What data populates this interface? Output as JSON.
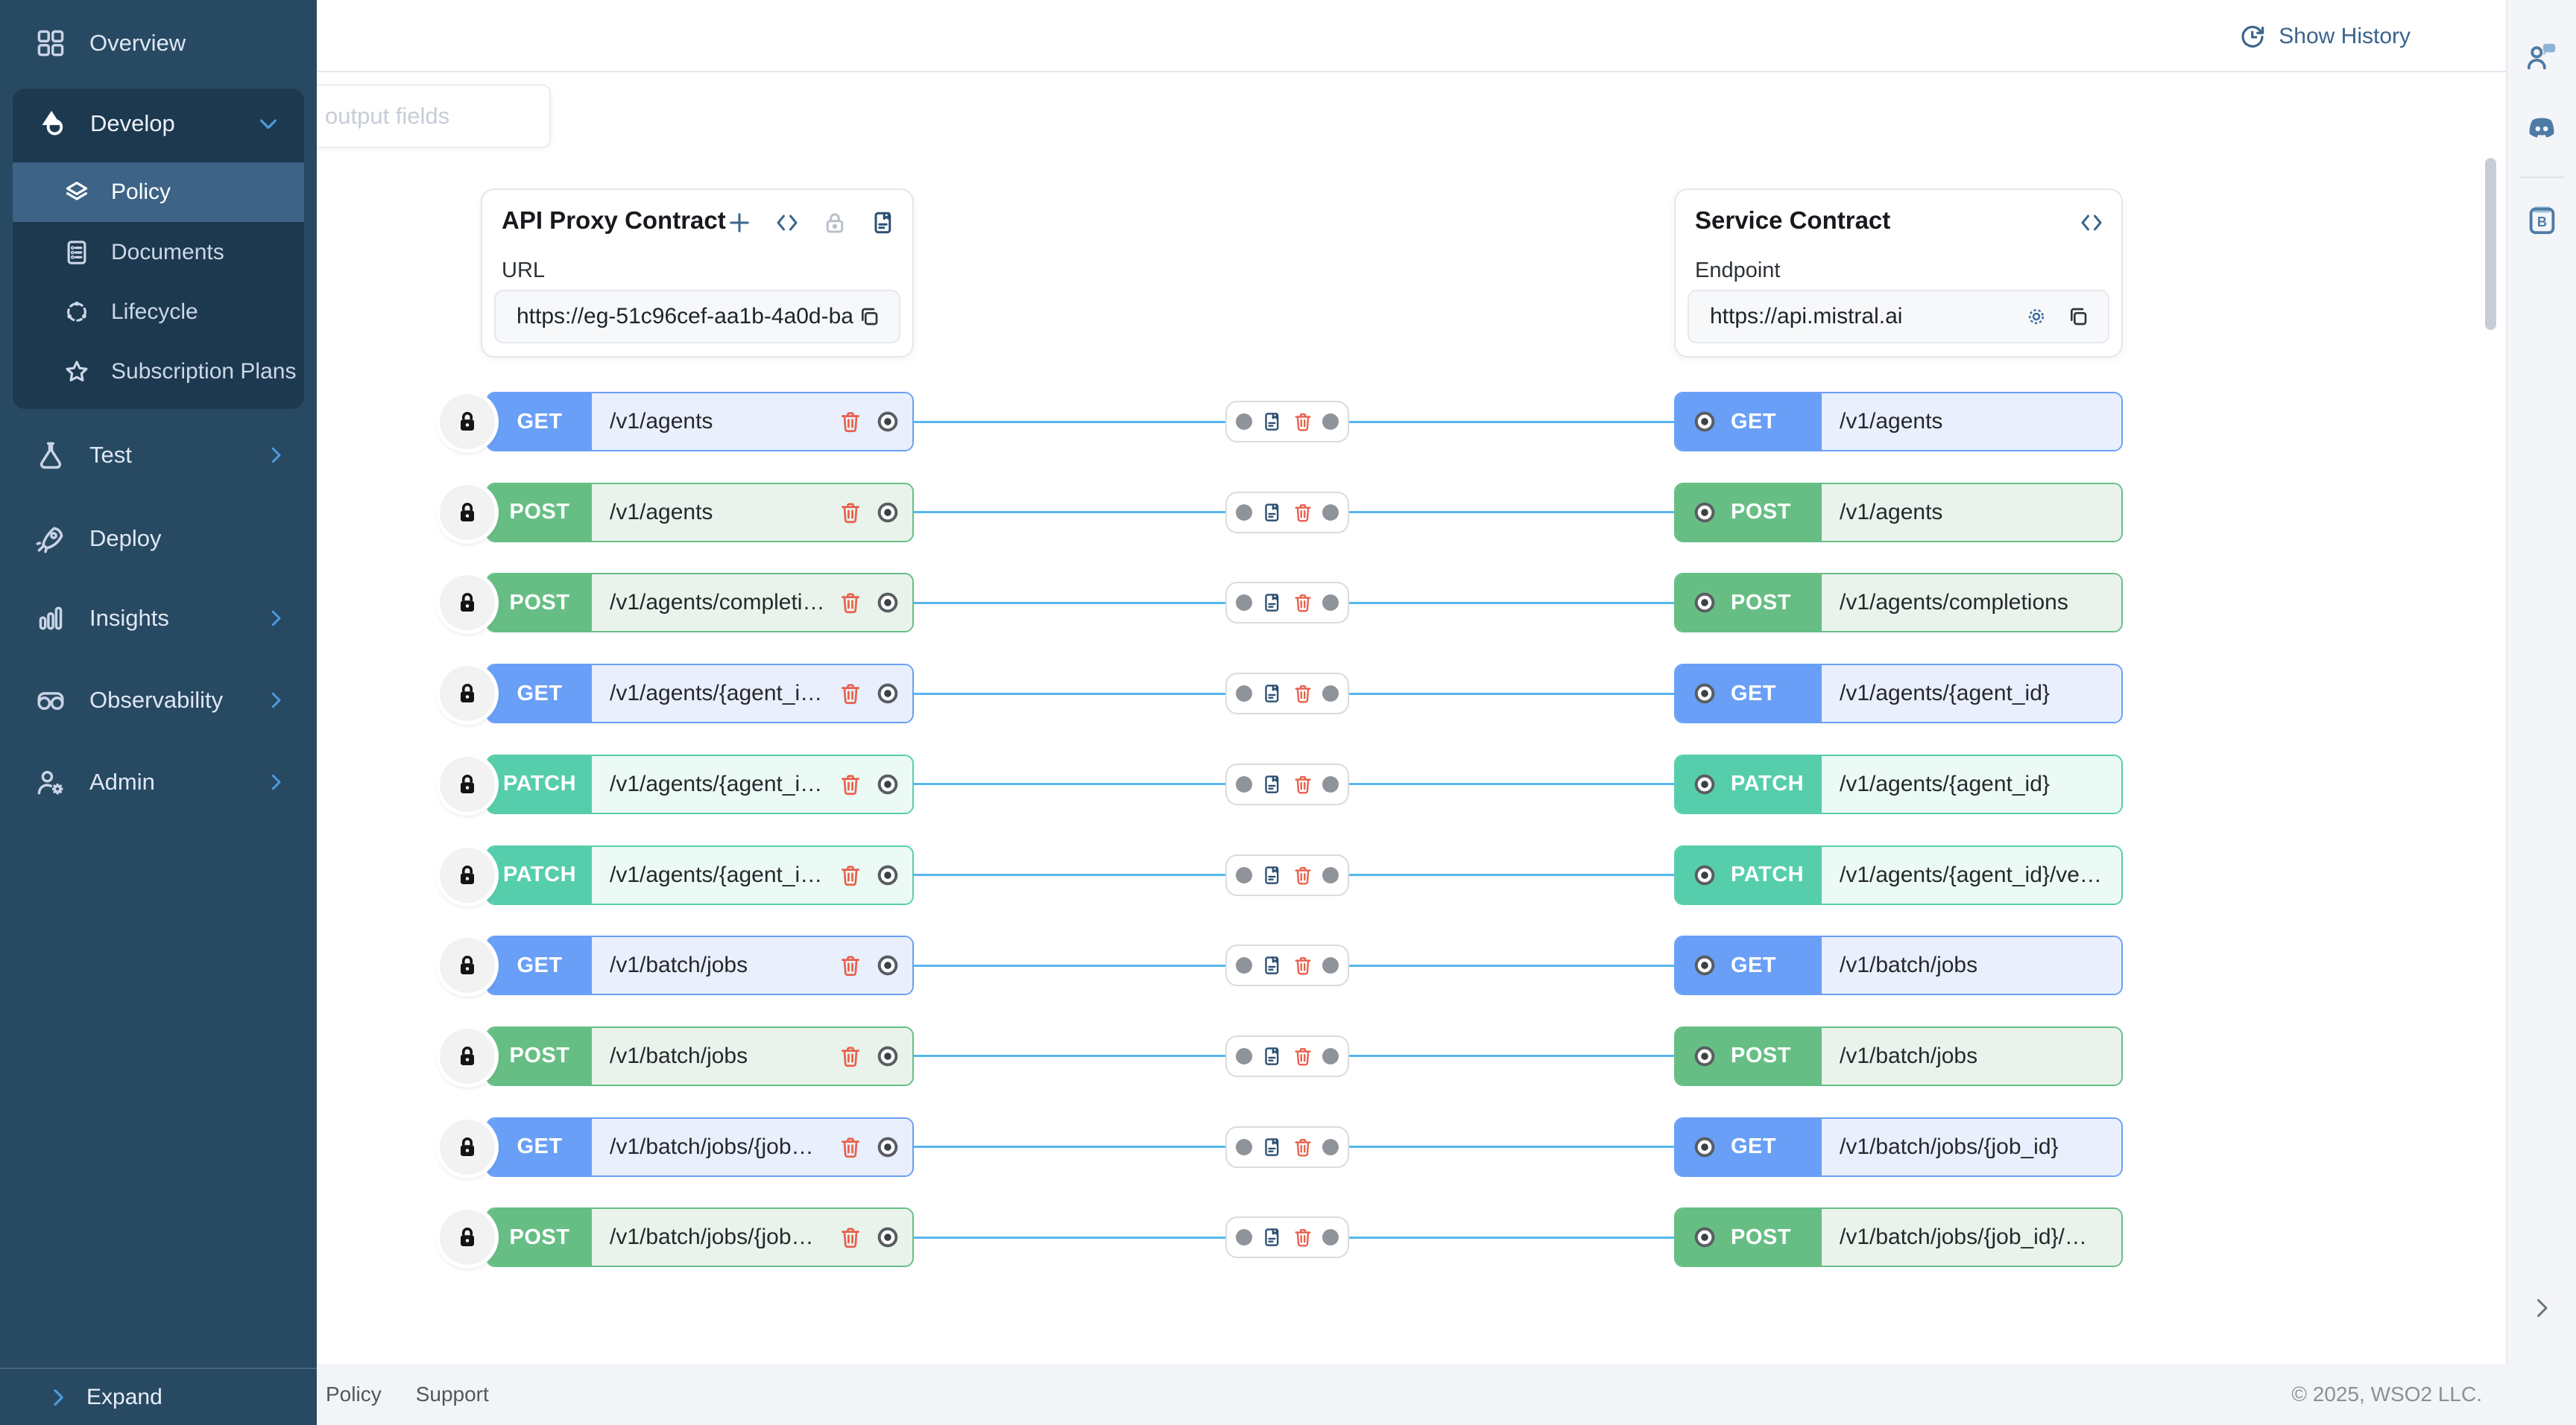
{
  "sidebar": {
    "items": [
      {
        "label": "Overview",
        "icon": "grid-icon",
        "chevron": null
      },
      {
        "label": "Test",
        "icon": "flask-icon",
        "chevron": "right"
      },
      {
        "label": "Deploy",
        "icon": "rocket-icon",
        "chevron": null
      },
      {
        "label": "Insights",
        "icon": "bars-icon",
        "chevron": "right"
      },
      {
        "label": "Observability",
        "icon": "goggles-icon",
        "chevron": "right"
      },
      {
        "label": "Admin",
        "icon": "person-gear-icon",
        "chevron": "right"
      }
    ],
    "develop_group": {
      "label": "Develop",
      "icon": "develop-icon",
      "chevron": "down",
      "children": [
        {
          "label": "Policy",
          "icon": "layers-icon",
          "selected": true
        },
        {
          "label": "Documents",
          "icon": "document-icon",
          "selected": false
        },
        {
          "label": "Lifecycle",
          "icon": "lifecycle-icon",
          "selected": false
        },
        {
          "label": "Subscription Plans",
          "icon": "star-icon",
          "selected": false
        }
      ]
    },
    "expand_label": "Expand"
  },
  "header": {
    "show_history_label": "Show History",
    "search_placeholder_visible": "output fields"
  },
  "proxy_card": {
    "title": "API Proxy Contract",
    "url_label": "URL",
    "url_value": "https://eg-51c96cef-aa1b-4a0d-ba"
  },
  "service_card": {
    "title": "Service Contract",
    "endpoint_label": "Endpoint",
    "endpoint_value": "https://api.mistral.ai"
  },
  "mappings": {
    "rows": [
      {
        "method": "GET",
        "proxy_path": "/v1/agents",
        "service_path": "/v1/agents"
      },
      {
        "method": "POST",
        "proxy_path": "/v1/agents",
        "service_path": "/v1/agents"
      },
      {
        "method": "POST",
        "proxy_path": "/v1/agents/completi…",
        "service_path": "/v1/agents/completions"
      },
      {
        "method": "GET",
        "proxy_path": "/v1/agents/{agent_i…",
        "service_path": "/v1/agents/{agent_id}"
      },
      {
        "method": "PATCH",
        "proxy_path": "/v1/agents/{agent_i…",
        "service_path": "/v1/agents/{agent_id}"
      },
      {
        "method": "PATCH",
        "proxy_path": "/v1/agents/{agent_i…",
        "service_path": "/v1/agents/{agent_id}/ve…"
      },
      {
        "method": "GET",
        "proxy_path": "/v1/batch/jobs",
        "service_path": "/v1/batch/jobs"
      },
      {
        "method": "POST",
        "proxy_path": "/v1/batch/jobs",
        "service_path": "/v1/batch/jobs"
      },
      {
        "method": "GET",
        "proxy_path": "/v1/batch/jobs/{job…",
        "service_path": "/v1/batch/jobs/{job_id}"
      },
      {
        "method": "POST",
        "proxy_path": "/v1/batch/jobs/{job…",
        "service_path": "/v1/batch/jobs/{job_id}/…"
      }
    ],
    "method_colors": {
      "GET": {
        "main": "#699FF6",
        "bg": "#E9EFFC"
      },
      "POST": {
        "main": "#67BE85",
        "bg": "#E9F3EC"
      },
      "PATCH": {
        "main": "#57CEAB",
        "bg": "#EBFAF4"
      }
    },
    "line_color": "#58B6EF"
  },
  "footer": {
    "links": [
      "Policy",
      "Support"
    ],
    "copyright": "© 2025, WSO2 LLC."
  }
}
